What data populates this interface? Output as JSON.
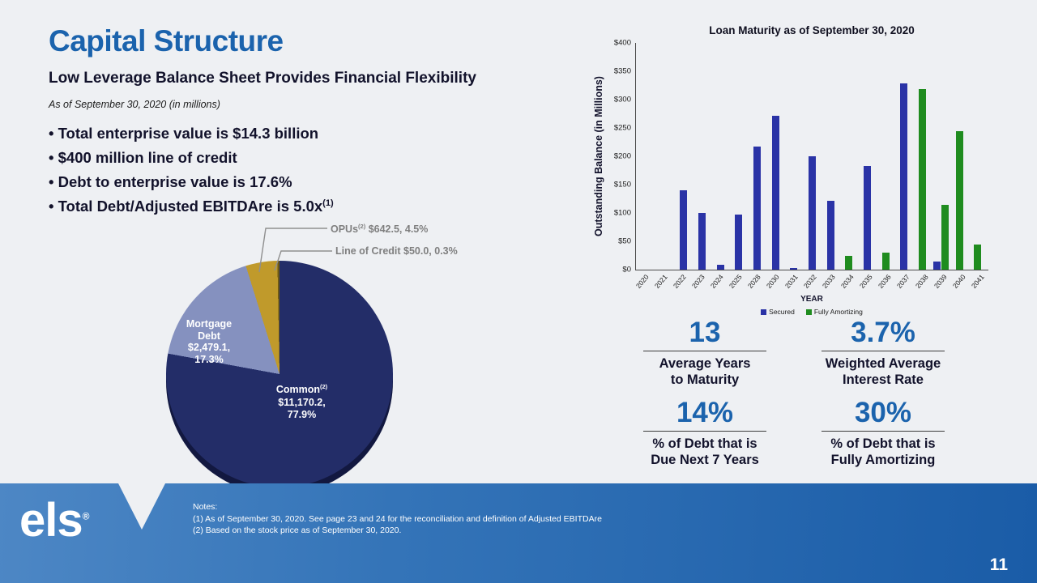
{
  "slide": {
    "title": "Capital Structure",
    "subtitle": "Low Leverage Balance Sheet Provides Financial Flexibility",
    "as_of": "As of September 30, 2020 (in millions)",
    "bullets": [
      {
        "text": "• Total enterprise value is $14.3 billion",
        "sup": ""
      },
      {
        "text": "• $400 million line of credit",
        "sup": ""
      },
      {
        "text": "• Debt to enterprise value is 17.6%",
        "sup": ""
      },
      {
        "text": "• Total Debt/Adjusted EBITDAre is 5.0x",
        "sup": "(1)"
      }
    ],
    "page_number": "11"
  },
  "pie_labels": {
    "opus_pre": "OPUs",
    "opus_sup": "(2)",
    "opus_post": " $642.5, 4.5%",
    "loc": "Line of Credit $50.0, 0.3%",
    "mortgage_lines": [
      "Mortgage",
      "Debt",
      "$2,479.1,",
      "17.3%"
    ],
    "common_pre": "Common",
    "common_sup": "(2)",
    "common_lines": [
      "$11,170.2,",
      "77.9%"
    ]
  },
  "chart_data": [
    {
      "type": "pie",
      "slices": [
        {
          "label": "Common(2)",
          "value": 11170.2,
          "pct": 77.9,
          "color": "#232d68"
        },
        {
          "label": "Mortgage Debt",
          "value": 2479.1,
          "pct": 17.3,
          "color": "#8591bf"
        },
        {
          "label": "OPUs(2)",
          "value": 642.5,
          "pct": 4.5,
          "color": "#c09a2b"
        },
        {
          "label": "Line of Credit",
          "value": 50.0,
          "pct": 0.3,
          "color": "#6e5a16"
        }
      ]
    },
    {
      "type": "bar",
      "title": "Loan Maturity as of September 30, 2020",
      "xlabel": "YEAR",
      "ylabel": "Outstanding Balance (in Millions)",
      "ylim": [
        0,
        400
      ],
      "ytick_labels": [
        "$0",
        "$50",
        "$100",
        "$150",
        "$200",
        "$250",
        "$300",
        "$350",
        "$400"
      ],
      "grid": false,
      "legend_position": "bottom",
      "categories": [
        "2020",
        "2021",
        "2022",
        "2023",
        "2024",
        "2025",
        "2028",
        "2030",
        "2031",
        "2032",
        "2033",
        "2034",
        "2035",
        "2036",
        "2037",
        "2038",
        "2039",
        "2040",
        "2041"
      ],
      "series": [
        {
          "name": "Secured",
          "color": "#2a33a6",
          "values": [
            0,
            0,
            140,
            100,
            8,
            97,
            217,
            272,
            3,
            200,
            122,
            0,
            183,
            0,
            328,
            0,
            15,
            0,
            0
          ]
        },
        {
          "name": "Fully Amortizing",
          "color": "#1f8c1f",
          "values": [
            0,
            0,
            0,
            0,
            0,
            0,
            0,
            0,
            0,
            0,
            0,
            25,
            0,
            30,
            0,
            318,
            115,
            245,
            45
          ]
        }
      ]
    }
  ],
  "stats": [
    {
      "value": "13",
      "lines": [
        "Average Years",
        "to Maturity"
      ]
    },
    {
      "value": "3.7%",
      "lines": [
        "Weighted Average",
        "Interest Rate"
      ]
    },
    {
      "value": "14%",
      "lines": [
        "% of Debt that is",
        "Due Next 7 Years"
      ]
    },
    {
      "value": "30%",
      "lines": [
        "% of Debt that is",
        "Fully Amortizing"
      ]
    }
  ],
  "footer": {
    "logo": "els",
    "logo_reg": "®",
    "notes_title": "Notes:",
    "note1": "(1) As of September 30, 2020.  See page 23 and 24 for the reconciliation and definition of Adjusted EBITDAre",
    "note2": "(2) Based on the stock price as of September 30, 2020."
  },
  "colors": {
    "accent_blue": "#1b63ad",
    "bar_secured": "#2a33a6",
    "bar_fully_amortizing": "#1f8c1f",
    "footer_gradient_left": "#4d87c5",
    "footer_gradient_right": "#1a5ca7",
    "background": "#eef0f3"
  }
}
